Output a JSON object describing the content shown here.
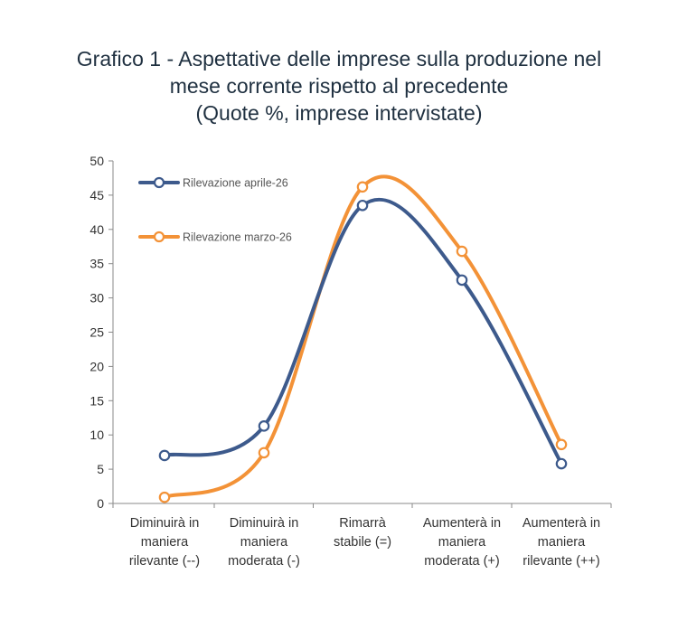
{
  "chart_data": {
    "type": "line",
    "title_lines": [
      "Grafico 1 - Aspettative delle imprese sulla produzione nel",
      "mese corrente rispetto al precedente",
      "(Quote %, imprese intervistate)"
    ],
    "categories": [
      [
        "Diminuirà in",
        "maniera",
        "rilevante (--)"
      ],
      [
        "Diminuirà in",
        "maniera",
        "moderata (-)"
      ],
      [
        "Rimarrà",
        "stabile (=)"
      ],
      [
        "Aumenterà in",
        "maniera",
        "moderata (+)"
      ],
      [
        "Aumenterà in",
        "maniera",
        "rilevante (++)"
      ]
    ],
    "ylim": [
      0,
      50
    ],
    "yticks": [
      0,
      5,
      10,
      15,
      20,
      25,
      30,
      35,
      40,
      45,
      50
    ],
    "grid": false,
    "smooth": true,
    "legend_position": "top-left",
    "series": [
      {
        "name": "Rilevazione aprile-26",
        "color": "#3d5a8c",
        "values": [
          7.0,
          11.3,
          43.5,
          32.6,
          5.8
        ]
      },
      {
        "name": "Rilevazione marzo-26",
        "color": "#f39237",
        "values": [
          0.9,
          7.4,
          46.2,
          36.8,
          8.6
        ]
      }
    ]
  }
}
